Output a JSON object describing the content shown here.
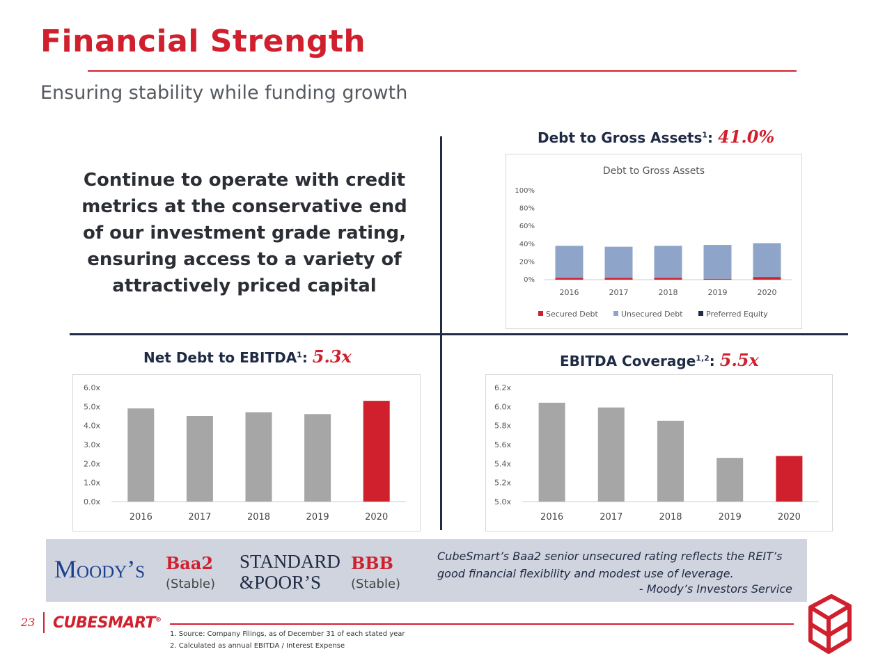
{
  "header": {
    "title": "Financial Strength",
    "subtitle": "Ensuring stability while funding growth"
  },
  "statement": "Continue to operate with credit metrics at the conservative end of our investment grade rating, ensuring access to a variety of attractively priced capital",
  "colors": {
    "brand_red": "#d0202e",
    "navy": "#1f2a44",
    "bar_gray": "#a6a6a6",
    "unsecured_blue": "#8ea4c8"
  },
  "debt_to_assets": {
    "heading": "Debt to Gross Assets",
    "sup": "1",
    "value": "41.0%"
  },
  "net_debt_ebitda": {
    "heading": "Net Debt to EBITDA",
    "sup": "1",
    "value": "5.3x"
  },
  "ebitda_coverage": {
    "heading": "EBITDA Coverage",
    "sup": "1,2",
    "value": "5.5x"
  },
  "chart_data": [
    {
      "type": "bar",
      "title": "Debt to Gross Assets",
      "stacked": true,
      "categories": [
        "2016",
        "2017",
        "2018",
        "2019",
        "2020"
      ],
      "series": [
        {
          "name": "Secured Debt",
          "color": "#d0202e",
          "values": [
            2,
            2,
            2,
            1,
            3
          ]
        },
        {
          "name": "Unsecured Debt",
          "color": "#8ea4c8",
          "values": [
            36,
            35,
            36,
            38,
            38
          ]
        },
        {
          "name": "Preferred Equity",
          "color": "#1f2a44",
          "values": [
            0,
            0,
            0,
            0,
            0
          ]
        }
      ],
      "y_ticks": [
        "0%",
        "20%",
        "40%",
        "60%",
        "80%",
        "100%"
      ],
      "ylim": [
        0,
        100
      ],
      "legend": "bottom"
    },
    {
      "type": "bar",
      "categories": [
        "2016",
        "2017",
        "2018",
        "2019",
        "2020"
      ],
      "values": [
        4.9,
        4.5,
        4.7,
        4.6,
        5.3
      ],
      "highlight": "2020",
      "y_ticks": [
        "0.0x",
        "1.0x",
        "2.0x",
        "3.0x",
        "4.0x",
        "5.0x",
        "6.0x"
      ],
      "ylim": [
        0,
        6
      ]
    },
    {
      "type": "bar",
      "categories": [
        "2016",
        "2017",
        "2018",
        "2019",
        "2020"
      ],
      "values": [
        6.04,
        5.99,
        5.85,
        5.46,
        5.48
      ],
      "highlight": "2020",
      "y_ticks": [
        "5.0x",
        "5.2x",
        "5.4x",
        "5.6x",
        "5.8x",
        "6.0x",
        "6.2x"
      ],
      "ylim": [
        5.0,
        6.2
      ]
    }
  ],
  "ratings": {
    "moodys_logo": "Moody’s",
    "moodys_rating": "Baa2",
    "moodys_outlook": "(Stable)",
    "sp_logo_line1": "STANDARD",
    "sp_logo_line2": "&POOR’S",
    "sp_rating": "BBB",
    "sp_outlook": "(Stable)",
    "quote": "CubeSmart’s Baa2 senior unsecured rating reflects the REIT’s good financial flexibility and modest use of leverage.",
    "quote_source": "- Moody’s Investors Service"
  },
  "footer": {
    "page": "23",
    "logo": "CUBESMART",
    "logo_mark": "®",
    "notes": [
      "1.   Source: Company Filings, as of December 31 of each stated year",
      "2.   Calculated as annual EBITDA / Interest Expense"
    ]
  }
}
